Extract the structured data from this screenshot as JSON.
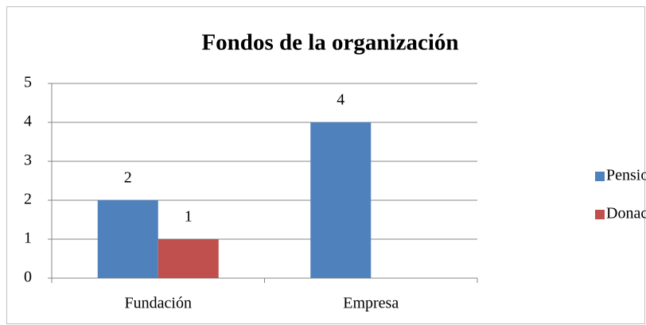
{
  "chart_data": {
    "type": "bar",
    "title": "Fondos de la organización",
    "categories": [
      "Fundación",
      "Empresa"
    ],
    "series": [
      {
        "name": "Pensiones",
        "color": "#4f81bd",
        "values": [
          2,
          4
        ]
      },
      {
        "name": "Donaciones",
        "color": "#c0504d",
        "values": [
          1,
          null
        ]
      }
    ],
    "ylim": [
      0,
      5
    ],
    "yticks": [
      0,
      1,
      2,
      3,
      4,
      5
    ],
    "grid": true,
    "legend": "right"
  }
}
